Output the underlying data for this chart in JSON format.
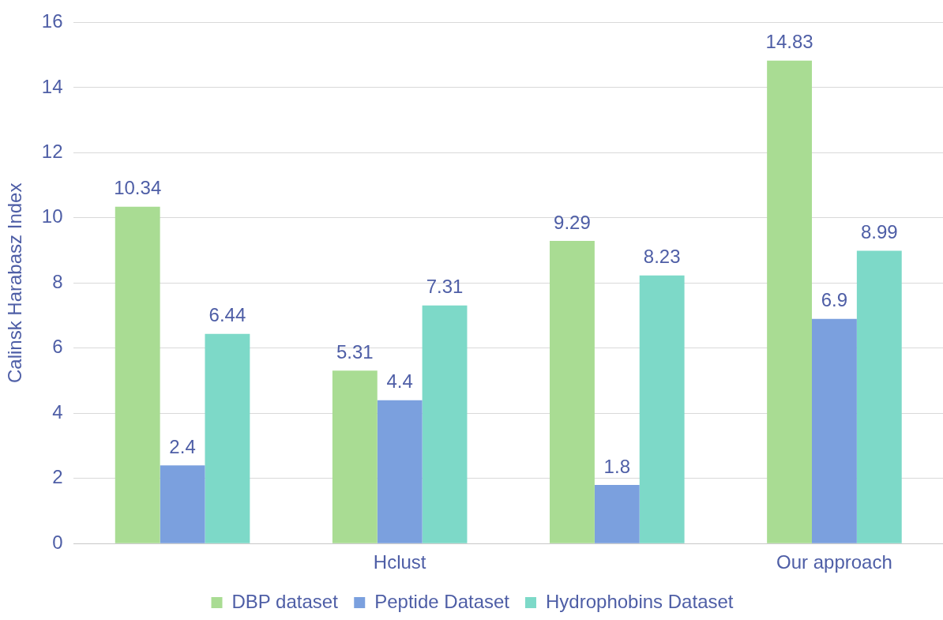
{
  "chart_data": {
    "type": "bar",
    "ylabel": "Calinsk Harabasz Index",
    "categories": [
      null,
      "Hclust",
      null,
      "Our approach"
    ],
    "series": [
      {
        "name": "DBP dataset",
        "color": "#a9dc93",
        "values": [
          10.34,
          5.31,
          9.29,
          14.83
        ]
      },
      {
        "name": "Peptide Dataset",
        "color": "#7ba0de",
        "values": [
          2.4,
          4.4,
          1.8,
          6.9
        ]
      },
      {
        "name": "Hydrophobins Dataset",
        "color": "#7dd9c8",
        "values": [
          6.44,
          7.31,
          8.23,
          8.99
        ]
      }
    ],
    "ylim": [
      0,
      16
    ],
    "yticks": [
      0,
      2,
      4,
      6,
      8,
      10,
      12,
      14,
      16
    ],
    "grid": "y",
    "legend": "bottom",
    "data_labels": true
  }
}
